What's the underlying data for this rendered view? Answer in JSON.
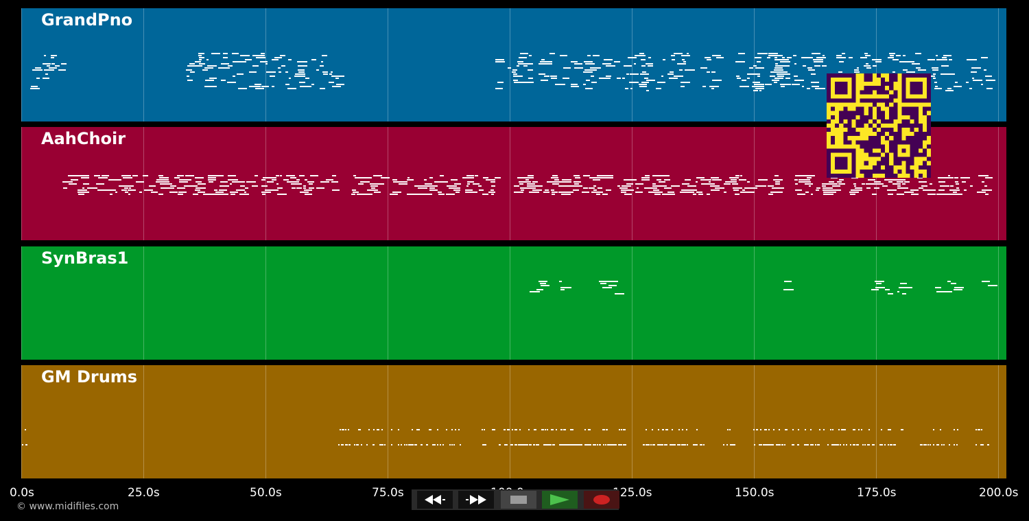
{
  "tracks": [
    {
      "name": "GrandPno",
      "color": "#006699"
    },
    {
      "name": "AahChoir",
      "color": "#990033"
    },
    {
      "name": "SynBras1",
      "color": "#009929"
    },
    {
      "name": "GM Drums",
      "color": "#996600"
    }
  ],
  "timeline": {
    "ticks": [
      "0.0s",
      "25.0s",
      "50.0s",
      "75.0s",
      "100.0s",
      "125.0s",
      "150.0s",
      "175.0s",
      "200.0s"
    ]
  },
  "transport": {
    "buttons": [
      {
        "name": "rewind-button",
        "icon": "rewind-icon"
      },
      {
        "name": "fast-forward-button",
        "icon": "fast-forward-icon"
      },
      {
        "name": "stop-button",
        "icon": "stop-icon"
      },
      {
        "name": "play-button",
        "icon": "play-icon"
      },
      {
        "name": "record-button",
        "icon": "record-icon"
      }
    ],
    "colors": {
      "stop": "#888888",
      "play": "#2e8b2e",
      "record": "#cc2222"
    }
  },
  "footer": {
    "copyright": "© www.midifiles.com"
  },
  "overlay": {
    "qr_code": "qr-code-icon",
    "qr_color": "#fde725",
    "qr_dark": "#440154"
  }
}
